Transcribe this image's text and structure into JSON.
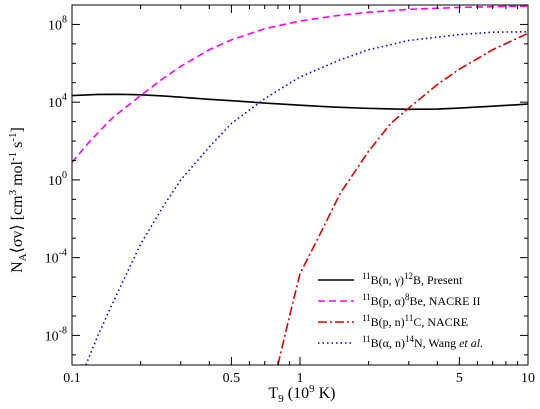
{
  "chart_data": {
    "type": "line",
    "title": "",
    "xscale": "log",
    "yscale": "log",
    "xlim": [
      0.1,
      10
    ],
    "ylim": [
      3e-10,
      1000000000.0
    ],
    "grid": false,
    "legend_position": "bottom-right",
    "xlabel": {
      "main": "T",
      "sub": "9",
      "rest": " (10",
      "sup": "9",
      "tail": " K)"
    },
    "ylabel": {
      "a": "N",
      "a_sub": "A",
      "b": "⟨σv⟩ [cm",
      "b_sup": "3",
      "c": " mol",
      "c_sup": "-1",
      "d": " s",
      "d_sup": "-1",
      "e": "]"
    },
    "x_ticks": [
      {
        "value": 0.1,
        "label": "0.1"
      },
      {
        "value": 0.5,
        "label": "0.5"
      },
      {
        "value": 1,
        "label": "1"
      },
      {
        "value": 5,
        "label": "5"
      },
      {
        "value": 10,
        "label": "10"
      }
    ],
    "y_ticks": [
      {
        "value": 1e-08,
        "base": "10",
        "exp": "-8"
      },
      {
        "value": 0.0001,
        "base": "10",
        "exp": "-4"
      },
      {
        "value": 1.0,
        "base": "10",
        "exp": "0"
      },
      {
        "value": 10000.0,
        "base": "10",
        "exp": "4"
      },
      {
        "value": 100000000.0,
        "base": "10",
        "exp": "8"
      }
    ],
    "series": [
      {
        "name": "11B(n, γ)12B, Present",
        "label_parts": [
          {
            "t": "11",
            "sup": true
          },
          {
            "t": "B(n, γ)"
          },
          {
            "t": "12",
            "sup": true
          },
          {
            "t": "B, Present"
          }
        ],
        "color": "#000000",
        "dash": "",
        "x": [
          0.1,
          0.13,
          0.16,
          0.2,
          0.25,
          0.3,
          0.4,
          0.5,
          0.7,
          1.0,
          1.4,
          2.0,
          3.0,
          4.0,
          5.0,
          7.0,
          10.0
        ],
        "y": [
          22000.0,
          25000.0,
          25500.0,
          24000.0,
          21000.0,
          18000.0,
          14000.0,
          12000.0,
          9000.0,
          7000.0,
          5600.0,
          4800.0,
          4300.0,
          4400.0,
          5000.0,
          6200.0,
          8000.0
        ]
      },
      {
        "name": "11B(p, α)8Be, NACRE II",
        "label_parts": [
          {
            "t": "11",
            "sup": true
          },
          {
            "t": "B(p, α)"
          },
          {
            "t": "8",
            "sup": true
          },
          {
            "t": "Be, NACRE II"
          }
        ],
        "color": "#ff00ff",
        "dash": "7,4",
        "x": [
          0.1,
          0.12,
          0.15,
          0.2,
          0.25,
          0.3,
          0.4,
          0.5,
          0.7,
          1.0,
          1.5,
          2.0,
          3.0,
          5.0,
          7.0,
          10.0
        ],
        "y": [
          8.0,
          100.0,
          1500.0,
          22000.0,
          160000.0,
          700000.0,
          5000000.0,
          16000000.0,
          60000000.0,
          150000000.0,
          300000000.0,
          420000000.0,
          600000000.0,
          750000000.0,
          820000000.0,
          880000000.0
        ]
      },
      {
        "name": "11B(p, n)11C, NACRE",
        "label_parts": [
          {
            "t": "11",
            "sup": true
          },
          {
            "t": "B(p, n)"
          },
          {
            "t": "11",
            "sup": true
          },
          {
            "t": "C, NACRE"
          }
        ],
        "color": "#dd0000",
        "dash": "9,3,2,3",
        "x": [
          0.8,
          0.9,
          1.0,
          1.2,
          1.5,
          2.0,
          2.5,
          3.0,
          4.0,
          5.0,
          7.0,
          10.0
        ],
        "y": [
          3e-10,
          1e-07,
          1.5e-05,
          0.001,
          0.2,
          30.0,
          800.0,
          5000.0,
          80000.0,
          500000.0,
          5000000.0,
          35000000.0
        ]
      },
      {
        "name": "11B(α, n)14N, Wang et al.",
        "label_parts": [
          {
            "t": "11",
            "sup": true
          },
          {
            "t": "B(α, n)"
          },
          {
            "t": "14",
            "sup": true
          },
          {
            "t": "N, Wang "
          },
          {
            "t": "et al.",
            "italic": true
          }
        ],
        "color": "#0000ff",
        "dash": "1.5,3",
        "x": [
          0.115,
          0.13,
          0.15,
          0.2,
          0.25,
          0.3,
          0.4,
          0.5,
          0.7,
          1.0,
          1.5,
          2.0,
          3.0,
          5.0,
          7.0,
          10.0
        ],
        "y": [
          3e-10,
          1e-08,
          4e-07,
          0.0005,
          0.04,
          1.0,
          50.0,
          800.0,
          15000.0,
          200000.0,
          1500000.0,
          5000000.0,
          15000000.0,
          30000000.0,
          40000000.0,
          42000000.0
        ]
      }
    ]
  }
}
